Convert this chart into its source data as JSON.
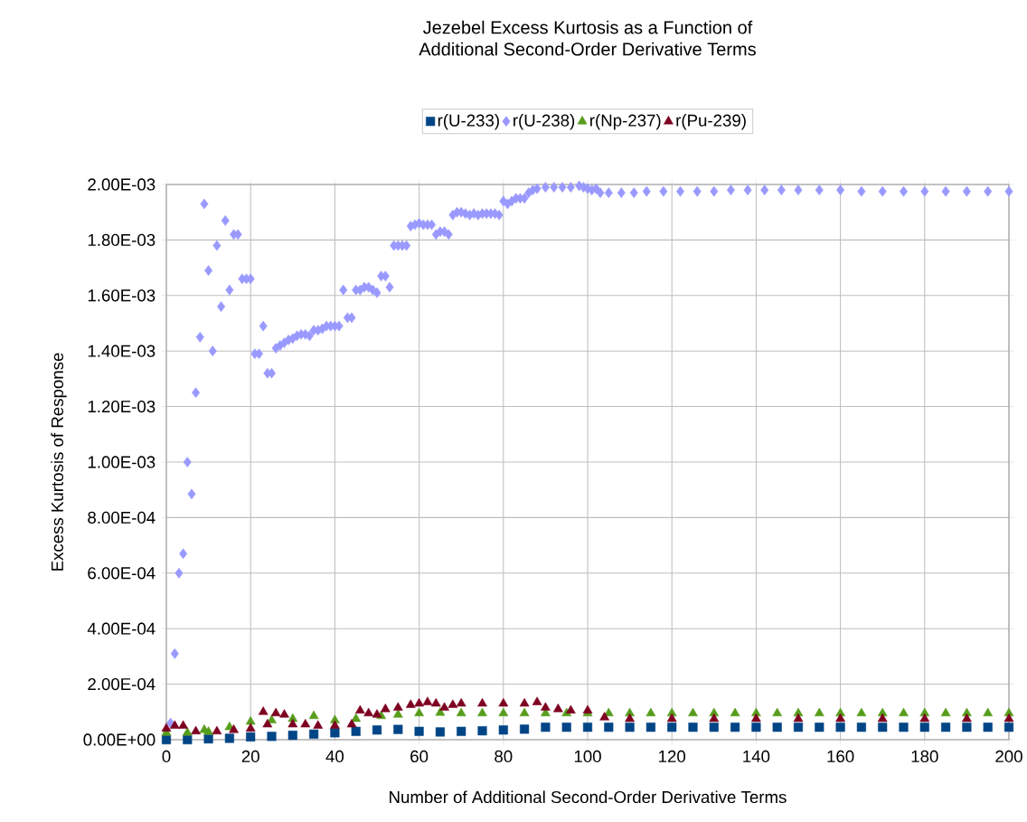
{
  "chart_data": {
    "type": "scatter",
    "title": "Jezebel Excess Kurtosis as a Function of\nAdditional Second-Order Derivative Terms",
    "xlabel": "Number of Additional Second-Order Derivative Terms",
    "ylabel": "Excess Kurtosis of Response",
    "xlim": [
      0,
      200
    ],
    "xticks": [
      0,
      20,
      40,
      60,
      80,
      100,
      120,
      140,
      160,
      180,
      200
    ],
    "ylim": [
      0,
      0.002
    ],
    "yticks": [
      {
        "value": 0,
        "label": "0.00E+00"
      },
      {
        "value": 0.0002,
        "label": "2.00E-04"
      },
      {
        "value": 0.0004,
        "label": "4.00E-04"
      },
      {
        "value": 0.0006,
        "label": "6.00E-04"
      },
      {
        "value": 0.0008,
        "label": "8.00E-04"
      },
      {
        "value": 0.001,
        "label": "1.00E-03"
      },
      {
        "value": 0.0012,
        "label": "1.20E-03"
      },
      {
        "value": 0.0014,
        "label": "1.40E-03"
      },
      {
        "value": 0.0016,
        "label": "1.60E-03"
      },
      {
        "value": 0.0018,
        "label": "1.80E-03"
      },
      {
        "value": 0.002,
        "label": "2.00E-03"
      }
    ],
    "grid": true,
    "legend": "top",
    "series": [
      {
        "name": "r(U-233)",
        "color": "#004586",
        "marker": "square",
        "x": [
          0,
          5,
          10,
          15,
          20,
          25,
          30,
          35,
          40,
          45,
          50,
          55,
          60,
          65,
          70,
          75,
          80,
          85,
          90,
          95,
          100,
          105,
          110,
          115,
          120,
          125,
          130,
          135,
          140,
          145,
          150,
          155,
          160,
          165,
          170,
          175,
          180,
          185,
          190,
          195,
          200
        ],
        "values": [
          0,
          0,
          3e-06,
          5e-06,
          1e-05,
          1.2e-05,
          1.6e-05,
          2e-05,
          2.5e-05,
          3e-05,
          3.5e-05,
          3.7e-05,
          3e-05,
          2.8e-05,
          3e-05,
          3.2e-05,
          3.5e-05,
          3.8e-05,
          4.5e-05,
          4.5e-05,
          4.5e-05,
          4.5e-05,
          4.5e-05,
          4.5e-05,
          4.5e-05,
          4.5e-05,
          4.5e-05,
          4.5e-05,
          4.5e-05,
          4.5e-05,
          4.5e-05,
          4.5e-05,
          4.5e-05,
          4.5e-05,
          4.5e-05,
          4.5e-05,
          4.5e-05,
          4.5e-05,
          4.5e-05,
          4.5e-05,
          4.5e-05
        ]
      },
      {
        "name": "r(U-238)",
        "color": "#9999ff",
        "marker": "diamond",
        "x": [
          1,
          2,
          3,
          4,
          5,
          6,
          7,
          8,
          9,
          10,
          11,
          12,
          13,
          14,
          15,
          16,
          17,
          18,
          19,
          20,
          21,
          22,
          23,
          24,
          25,
          26,
          27,
          28,
          29,
          30,
          31,
          32,
          33,
          34,
          35,
          36,
          37,
          38,
          39,
          40,
          41,
          42,
          43,
          44,
          45,
          46,
          47,
          48,
          49,
          50,
          51,
          52,
          53,
          54,
          55,
          56,
          57,
          58,
          59,
          60,
          61,
          62,
          63,
          64,
          65,
          66,
          67,
          68,
          69,
          70,
          71,
          72,
          73,
          74,
          75,
          76,
          77,
          78,
          79,
          80,
          81,
          82,
          83,
          84,
          85,
          86,
          87,
          88,
          90,
          92,
          94,
          96,
          98,
          99,
          100,
          101,
          102,
          103,
          105,
          108,
          111,
          114,
          118,
          122,
          126,
          130,
          134,
          138,
          142,
          146,
          150,
          155,
          160,
          165,
          170,
          175,
          180,
          185,
          190,
          195,
          200
        ],
        "values": [
          6e-05,
          0.00031,
          0.0006,
          0.00067,
          0.001,
          0.000885,
          0.00125,
          0.00145,
          0.00193,
          0.00169,
          0.0014,
          0.00178,
          0.00156,
          0.00187,
          0.00162,
          0.00182,
          0.00182,
          0.00166,
          0.00166,
          0.00166,
          0.00139,
          0.00139,
          0.00149,
          0.00132,
          0.00132,
          0.00141,
          0.00142,
          0.00143,
          0.00144,
          0.001445,
          0.001455,
          0.00146,
          0.00146,
          0.001455,
          0.001475,
          0.001475,
          0.00148,
          0.00149,
          0.00149,
          0.00149,
          0.00149,
          0.00162,
          0.00152,
          0.00152,
          0.00162,
          0.00162,
          0.00163,
          0.00163,
          0.00162,
          0.00161,
          0.00167,
          0.00167,
          0.00163,
          0.00178,
          0.00178,
          0.00178,
          0.00178,
          0.00185,
          0.001855,
          0.00186,
          0.001855,
          0.001855,
          0.001855,
          0.00182,
          0.00183,
          0.00183,
          0.00182,
          0.00189,
          0.0019,
          0.0019,
          0.001895,
          0.00189,
          0.001895,
          0.00189,
          0.001895,
          0.001895,
          0.001895,
          0.001895,
          0.00189,
          0.00194,
          0.00193,
          0.00194,
          0.00195,
          0.00195,
          0.00195,
          0.00197,
          0.00198,
          0.001985,
          0.00199,
          0.00199,
          0.00199,
          0.00199,
          0.001995,
          0.00199,
          0.001985,
          0.00198,
          0.001985,
          0.00197,
          0.00197,
          0.00197,
          0.00197,
          0.001975,
          0.001975,
          0.001975,
          0.001975,
          0.001975,
          0.00198,
          0.00198,
          0.00198,
          0.00198,
          0.00198,
          0.00198,
          0.00198,
          0.001975,
          0.001975,
          0.001975,
          0.001975,
          0.001975,
          0.001975,
          0.001975,
          0.001975
        ]
      },
      {
        "name": "r(Np-237)",
        "color": "#579d1c",
        "marker": "triangle",
        "x": [
          0,
          5,
          9,
          10,
          15,
          20,
          25,
          30,
          35,
          40,
          45,
          51,
          55,
          60,
          65,
          70,
          75,
          80,
          85,
          90,
          95,
          100,
          105,
          110,
          115,
          120,
          125,
          130,
          135,
          140,
          145,
          150,
          155,
          160,
          165,
          170,
          175,
          180,
          185,
          190,
          195,
          200
        ],
        "values": [
          2.5e-05,
          2.5e-05,
          3.5e-05,
          2.8e-05,
          4.5e-05,
          6.5e-05,
          7e-05,
          7.5e-05,
          8.5e-05,
          7e-05,
          7.5e-05,
          8.5e-05,
          9e-05,
          9.5e-05,
          9.7e-05,
          9.5e-05,
          9.5e-05,
          9.5e-05,
          9.5e-05,
          9.5e-05,
          9.5e-05,
          9.5e-05,
          9.5e-05,
          9.5e-05,
          9.5e-05,
          9.5e-05,
          9.5e-05,
          9.5e-05,
          9.5e-05,
          9.5e-05,
          9.5e-05,
          9.5e-05,
          9.5e-05,
          9.5e-05,
          9.5e-05,
          9.5e-05,
          9.5e-05,
          9.5e-05,
          9.5e-05,
          9.5e-05,
          9.5e-05,
          9.5e-05
        ]
      },
      {
        "name": "r(Pu-239)",
        "color": "#7e0021",
        "marker": "triangle",
        "x": [
          0,
          2,
          4,
          7,
          12,
          16,
          20,
          23,
          24,
          26,
          28,
          30,
          33,
          36,
          40,
          44,
          46,
          48,
          50,
          52,
          55,
          58,
          60,
          62,
          64,
          66,
          68,
          70,
          75,
          80,
          85,
          88,
          90,
          93,
          96,
          100,
          104,
          110,
          120,
          130,
          140,
          150,
          160,
          170,
          180,
          190,
          200
        ],
        "values": [
          4e-05,
          5e-05,
          5e-05,
          3e-05,
          3e-05,
          3.5e-05,
          4e-05,
          0.0001,
          5.5e-05,
          9.5e-05,
          9e-05,
          5.5e-05,
          5.5e-05,
          5e-05,
          5e-05,
          5.5e-05,
          0.000105,
          9.5e-05,
          9e-05,
          0.00011,
          0.000115,
          0.000125,
          0.00013,
          0.000135,
          0.00013,
          0.000115,
          0.000125,
          0.00013,
          0.00013,
          0.00013,
          0.00013,
          0.000135,
          0.000115,
          0.00011,
          0.000105,
          0.000105,
          8e-05,
          7.5e-05,
          7.5e-05,
          7.5e-05,
          7.5e-05,
          7.5e-05,
          7.5e-05,
          7.5e-05,
          7.5e-05,
          7.5e-05,
          7.5e-05
        ]
      }
    ]
  }
}
